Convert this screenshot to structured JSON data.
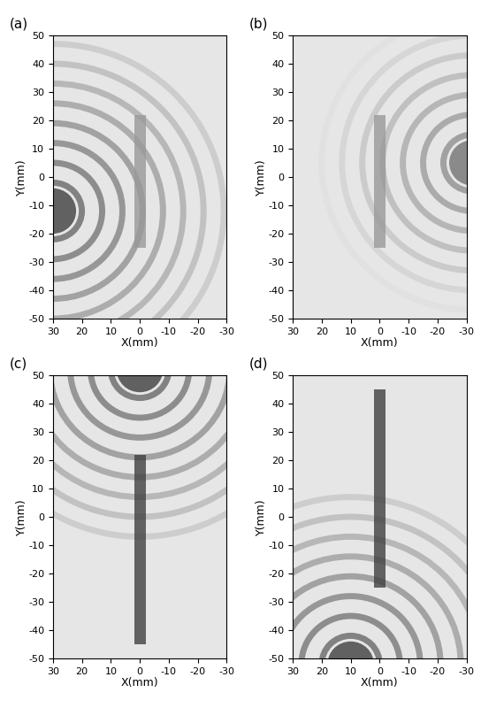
{
  "chart_data": [
    {
      "type": "image",
      "title": "(a)",
      "x_label": "X(mm)",
      "y_label": "Y(mm)",
      "xlim": [
        30,
        -30
      ],
      "ylim": [
        -50,
        50
      ],
      "xticks": [
        30,
        20,
        10,
        0,
        -10,
        -20,
        -30
      ],
      "yticks": [
        -50,
        -40,
        -30,
        -20,
        -10,
        0,
        10,
        20,
        30,
        40,
        50
      ]
    },
    {
      "type": "image",
      "title": "(b)",
      "x_label": "X(mm)",
      "y_label": "Y(mm)",
      "xlim": [
        30,
        -30
      ],
      "ylim": [
        -50,
        50
      ],
      "xticks": [
        30,
        20,
        10,
        0,
        -10,
        -20,
        -30
      ],
      "yticks": [
        -50,
        -40,
        -30,
        -20,
        -10,
        0,
        10,
        20,
        30,
        40,
        50
      ]
    },
    {
      "type": "image",
      "title": "(c)",
      "x_label": "X(mm)",
      "y_label": "Y(mm)",
      "xlim": [
        30,
        -30
      ],
      "ylim": [
        -50,
        50
      ],
      "xticks": [
        30,
        20,
        10,
        0,
        -10,
        -20,
        -30
      ],
      "yticks": [
        -50,
        -40,
        -30,
        -20,
        -10,
        0,
        10,
        20,
        30,
        40,
        50
      ]
    },
    {
      "type": "image",
      "title": "(d)",
      "x_label": "X(mm)",
      "y_label": "Y(mm)",
      "xlim": [
        30,
        -30
      ],
      "ylim": [
        -50,
        50
      ],
      "xticks": [
        30,
        20,
        10,
        0,
        -10,
        -20,
        -30
      ],
      "yticks": [
        -50,
        -40,
        -30,
        -20,
        -10,
        0,
        10,
        20,
        30,
        40,
        50
      ]
    }
  ]
}
